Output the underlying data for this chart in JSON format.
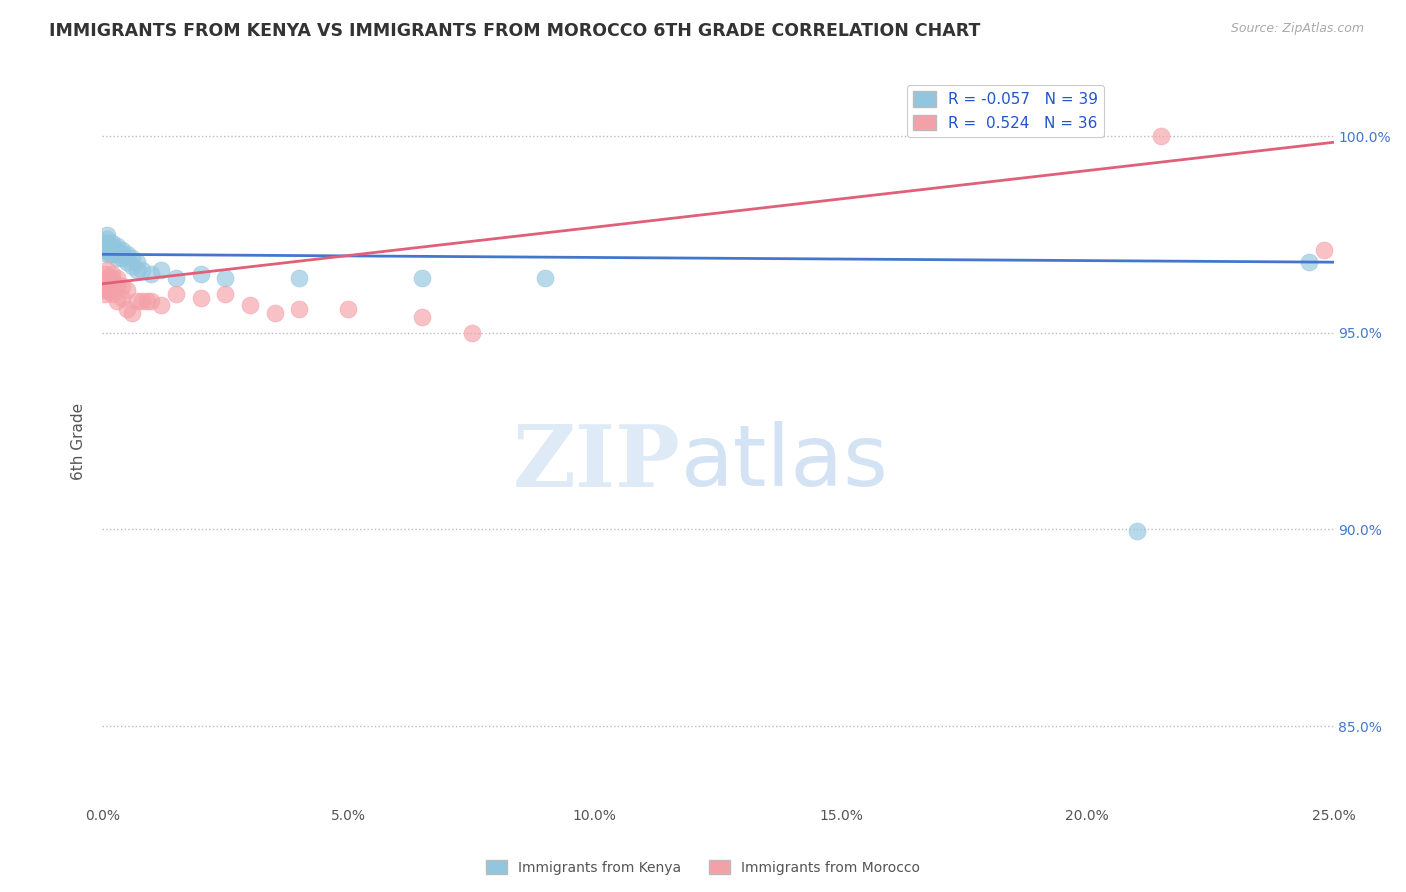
{
  "title": "IMMIGRANTS FROM KENYA VS IMMIGRANTS FROM MOROCCO 6TH GRADE CORRELATION CHART",
  "source": "Source: ZipAtlas.com",
  "ylabel": "6th Grade",
  "xlim": [
    0.0,
    0.25
  ],
  "ylim": [
    0.83,
    1.015
  ],
  "xticks": [
    0.0,
    0.05,
    0.1,
    0.15,
    0.2,
    0.25
  ],
  "xtick_labels": [
    "0.0%",
    "5.0%",
    "10.0%",
    "15.0%",
    "20.0%",
    "25.0%"
  ],
  "yticks": [
    0.85,
    0.9,
    0.95,
    1.0
  ],
  "ytick_labels": [
    "85.0%",
    "90.0%",
    "95.0%",
    "100.0%"
  ],
  "legend_kenya_R": "-0.057",
  "legend_kenya_N": "39",
  "legend_morocco_R": "0.524",
  "legend_morocco_N": "36",
  "kenya_color": "#92c5de",
  "morocco_color": "#f4a0a8",
  "kenya_line_color": "#4477cc",
  "morocco_line_color": "#e0607a",
  "kenya_x": [
    0.0005,
    0.0005,
    0.0005,
    0.001,
    0.001,
    0.001,
    0.001,
    0.001,
    0.0015,
    0.0015,
    0.0015,
    0.002,
    0.002,
    0.002,
    0.002,
    0.003,
    0.003,
    0.003,
    0.003,
    0.004,
    0.004,
    0.004,
    0.005,
    0.005,
    0.006,
    0.006,
    0.007,
    0.007,
    0.008,
    0.01,
    0.012,
    0.015,
    0.02,
    0.025,
    0.04,
    0.065,
    0.09,
    0.21,
    0.245
  ],
  "kenya_y": [
    0.971,
    0.972,
    0.973,
    0.97,
    0.972,
    0.973,
    0.974,
    0.975,
    0.97,
    0.972,
    0.971,
    0.97,
    0.972,
    0.971,
    0.973,
    0.969,
    0.971,
    0.972,
    0.97,
    0.969,
    0.971,
    0.97,
    0.968,
    0.97,
    0.967,
    0.969,
    0.966,
    0.968,
    0.966,
    0.965,
    0.966,
    0.964,
    0.965,
    0.964,
    0.964,
    0.964,
    0.964,
    0.8995,
    0.968
  ],
  "morocco_x": [
    0.0005,
    0.0005,
    0.0005,
    0.001,
    0.001,
    0.001,
    0.001,
    0.0015,
    0.0015,
    0.002,
    0.002,
    0.002,
    0.003,
    0.003,
    0.003,
    0.004,
    0.004,
    0.005,
    0.005,
    0.006,
    0.007,
    0.008,
    0.009,
    0.01,
    0.012,
    0.015,
    0.02,
    0.025,
    0.03,
    0.035,
    0.04,
    0.05,
    0.065,
    0.075,
    0.215,
    0.248
  ],
  "morocco_y": [
    0.96,
    0.961,
    0.965,
    0.961,
    0.964,
    0.962,
    0.966,
    0.961,
    0.964,
    0.96,
    0.964,
    0.965,
    0.958,
    0.962,
    0.964,
    0.959,
    0.962,
    0.956,
    0.961,
    0.955,
    0.958,
    0.958,
    0.958,
    0.958,
    0.957,
    0.96,
    0.959,
    0.96,
    0.957,
    0.955,
    0.956,
    0.956,
    0.954,
    0.95,
    1.0,
    0.971
  ],
  "watermark_zip": "ZIP",
  "watermark_atlas": "atlas",
  "background_color": "#ffffff",
  "grid_color": "#bbbbbb"
}
